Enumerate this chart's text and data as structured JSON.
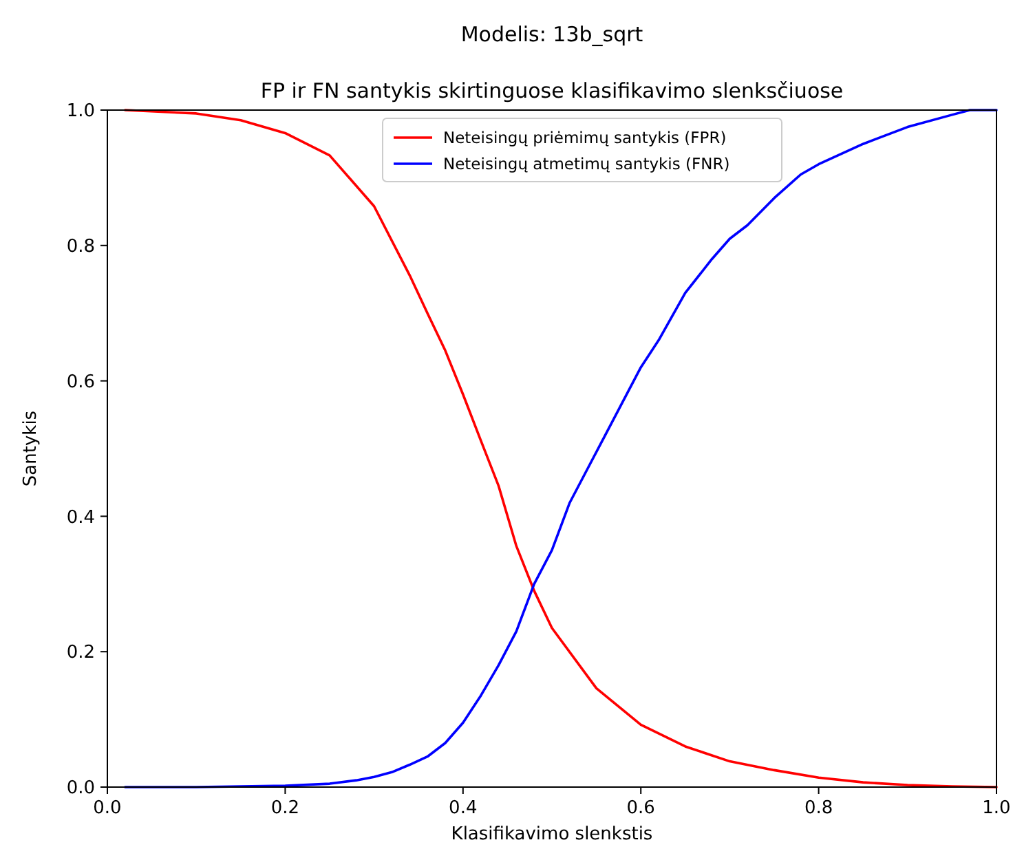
{
  "chart_data": {
    "type": "line",
    "title": "Modelis: 13b_sqrt",
    "subtitle": "FP ir FN santykis skirtinguose klasifikavimo slenksčiuose",
    "xlabel": "Klasifikavimo slenkstis",
    "ylabel": "Santykis",
    "xlim": [
      0,
      1
    ],
    "ylim": [
      0,
      1
    ],
    "xticks": [
      {
        "value": 0,
        "label": "0.0"
      },
      0.2,
      0.4,
      0.6,
      0.8,
      {
        "value": 1,
        "label": "1.0"
      }
    ],
    "yticks": [
      {
        "value": 0,
        "label": "0.0"
      },
      0.2,
      0.4,
      0.6,
      0.8,
      {
        "value": 1,
        "label": "1.0"
      }
    ],
    "grid": false,
    "legend": "top",
    "line_style": "solid",
    "marker": "none",
    "series": [
      {
        "name": "Neteisingų priėmimų santykis (FPR)",
        "color": "#ff0000",
        "x": [
          0.02,
          0.1,
          0.15,
          0.2,
          0.25,
          0.3,
          0.34,
          0.36,
          0.38,
          0.4,
          0.42,
          0.44,
          0.46,
          0.48,
          0.5,
          0.55,
          0.6,
          0.65,
          0.7,
          0.75,
          0.8,
          0.85,
          0.9,
          0.95,
          1.0
        ],
        "values": [
          1.0,
          0.995,
          0.985,
          0.966,
          0.933,
          0.858,
          0.756,
          0.7,
          0.645,
          0.58,
          0.512,
          0.445,
          0.356,
          0.29,
          0.235,
          0.146,
          0.092,
          0.06,
          0.038,
          0.025,
          0.014,
          0.007,
          0.003,
          0.001,
          0.0
        ]
      },
      {
        "name": "Neteisingų atmetimų santykis (FNR)",
        "color": "#0000ff",
        "x": [
          0.02,
          0.1,
          0.2,
          0.25,
          0.28,
          0.3,
          0.32,
          0.34,
          0.36,
          0.38,
          0.4,
          0.42,
          0.44,
          0.46,
          0.48,
          0.5,
          0.52,
          0.54,
          0.56,
          0.58,
          0.6,
          0.62,
          0.65,
          0.68,
          0.7,
          0.72,
          0.75,
          0.78,
          0.8,
          0.85,
          0.9,
          0.95,
          0.97,
          1.0
        ],
        "values": [
          0.0,
          0.0,
          0.002,
          0.005,
          0.01,
          0.015,
          0.022,
          0.033,
          0.045,
          0.065,
          0.095,
          0.135,
          0.18,
          0.23,
          0.3,
          0.35,
          0.42,
          0.47,
          0.52,
          0.57,
          0.62,
          0.66,
          0.73,
          0.78,
          0.81,
          0.83,
          0.87,
          0.905,
          0.92,
          0.95,
          0.975,
          0.993,
          1.0,
          1.0
        ]
      }
    ]
  }
}
